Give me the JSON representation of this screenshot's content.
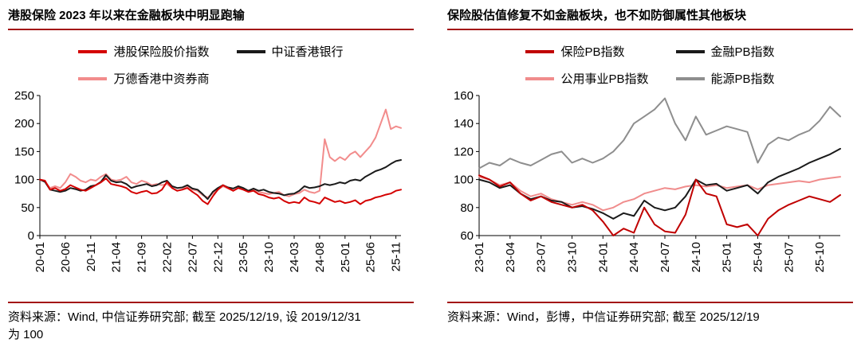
{
  "styles": {
    "rule_color": "#a31515",
    "axis_color": "#000000",
    "background": "#ffffff"
  },
  "panels": [
    {
      "source": "资料来源：Wind, 中信证券研究部; 截至 2025/12/19, 设 2019/12/31\n为 100"
    },
    {
      "source": "资料来源：Wind，彭博，中信证券研究部; 截至 2025/12/19"
    }
  ],
  "chart_data": [
    {
      "type": "line",
      "title": "港股保险 2023 年以来在金融板块中明显跑输",
      "xlabel": "",
      "ylabel": "",
      "ylim": [
        0,
        250
      ],
      "y_ticks": [
        0,
        50,
        100,
        150,
        200,
        250
      ],
      "grid": false,
      "legend_position": "top",
      "x_tick_labels": [
        "20-01",
        "20-06",
        "20-11",
        "21-04",
        "21-09",
        "22-02",
        "22-07",
        "22-12",
        "23-05",
        "23-10",
        "24-03",
        "24-08",
        "25-01",
        "25-06",
        "25-11"
      ],
      "x_tick_interval": 5,
      "series": [
        {
          "name": "港股保险股价指数",
          "color": "#d40000",
          "values": [
            100,
            98,
            82,
            85,
            80,
            83,
            90,
            86,
            82,
            80,
            85,
            90,
            95,
            102,
            92,
            90,
            88,
            85,
            78,
            75,
            78,
            80,
            75,
            76,
            82,
            96,
            85,
            80,
            82,
            85,
            78,
            72,
            62,
            56,
            70,
            82,
            90,
            85,
            80,
            85,
            82,
            78,
            80,
            74,
            72,
            68,
            66,
            68,
            62,
            58,
            60,
            58,
            68,
            62,
            60,
            57,
            68,
            64,
            60,
            62,
            58,
            60,
            63,
            56,
            62,
            64,
            68,
            70,
            73,
            75,
            80,
            82
          ]
        },
        {
          "name": "中证香港银行",
          "color": "#1a1a1a",
          "values": [
            100,
            96,
            82,
            80,
            78,
            80,
            85,
            83,
            80,
            82,
            88,
            90,
            96,
            108,
            98,
            95,
            96,
            92,
            85,
            88,
            90,
            92,
            88,
            90,
            95,
            98,
            88,
            85,
            86,
            90,
            84,
            82,
            74,
            65,
            78,
            85,
            90,
            86,
            84,
            88,
            85,
            80,
            84,
            80,
            82,
            78,
            76,
            75,
            72,
            74,
            75,
            80,
            88,
            85,
            86,
            88,
            92,
            90,
            92,
            95,
            93,
            98,
            100,
            98,
            105,
            110,
            115,
            118,
            122,
            128,
            133,
            135
          ]
        },
        {
          "name": "万德香港中资券商",
          "color": "#f28c8c",
          "values": [
            100,
            96,
            85,
            88,
            85,
            95,
            110,
            105,
            98,
            95,
            100,
            98,
            105,
            110,
            100,
            98,
            100,
            105,
            95,
            92,
            98,
            95,
            90,
            92,
            90,
            92,
            85,
            80,
            82,
            88,
            82,
            80,
            72,
            68,
            75,
            82,
            88,
            84,
            80,
            85,
            82,
            78,
            82,
            78,
            76,
            74,
            76,
            78,
            72,
            70,
            74,
            76,
            82,
            78,
            76,
            80,
            172,
            140,
            133,
            140,
            135,
            145,
            150,
            140,
            150,
            160,
            175,
            200,
            225,
            190,
            195,
            192
          ]
        }
      ]
    },
    {
      "type": "line",
      "title": "保险股估值修复不如金融板块，也不如防御属性其他板块",
      "xlabel": "",
      "ylabel": "",
      "ylim": [
        60,
        160
      ],
      "y_ticks": [
        60,
        80,
        100,
        120,
        140,
        160
      ],
      "grid": false,
      "legend_position": "top",
      "x_tick_labels": [
        "23-01",
        "23-04",
        "23-07",
        "23-10",
        "24-01",
        "24-04",
        "24-07",
        "24-10",
        "25-01",
        "25-04",
        "25-07",
        "25-10"
      ],
      "x_tick_interval": 3,
      "series": [
        {
          "name": "保险PB指数",
          "color": "#c00000",
          "values": [
            103,
            100,
            95,
            98,
            90,
            85,
            88,
            84,
            82,
            80,
            82,
            78,
            70,
            60,
            65,
            62,
            80,
            68,
            63,
            62,
            75,
            100,
            90,
            88,
            68,
            66,
            68,
            60,
            72,
            78,
            82,
            85,
            88,
            86,
            84,
            89
          ]
        },
        {
          "name": "金融PB指数",
          "color": "#1a1a1a",
          "values": [
            100,
            98,
            94,
            96,
            90,
            86,
            88,
            85,
            84,
            80,
            81,
            79,
            76,
            72,
            76,
            74,
            85,
            80,
            78,
            80,
            88,
            100,
            96,
            97,
            92,
            94,
            96,
            90,
            98,
            102,
            105,
            108,
            112,
            115,
            118,
            122
          ]
        },
        {
          "name": "公用事业PB指数",
          "color": "#f08c8c",
          "values": [
            102,
            100,
            96,
            98,
            92,
            88,
            90,
            86,
            84,
            82,
            84,
            82,
            78,
            80,
            84,
            86,
            90,
            92,
            94,
            93,
            95,
            96,
            95,
            96,
            94,
            95,
            96,
            93,
            96,
            97,
            98,
            99,
            98,
            100,
            101,
            102
          ]
        },
        {
          "name": "能源PB指数",
          "color": "#8e8e8e",
          "values": [
            108,
            112,
            110,
            115,
            112,
            110,
            114,
            118,
            120,
            112,
            115,
            112,
            115,
            120,
            128,
            140,
            145,
            150,
            158,
            140,
            128,
            145,
            132,
            135,
            138,
            136,
            134,
            112,
            125,
            130,
            128,
            132,
            135,
            142,
            152,
            145
          ]
        }
      ]
    }
  ]
}
